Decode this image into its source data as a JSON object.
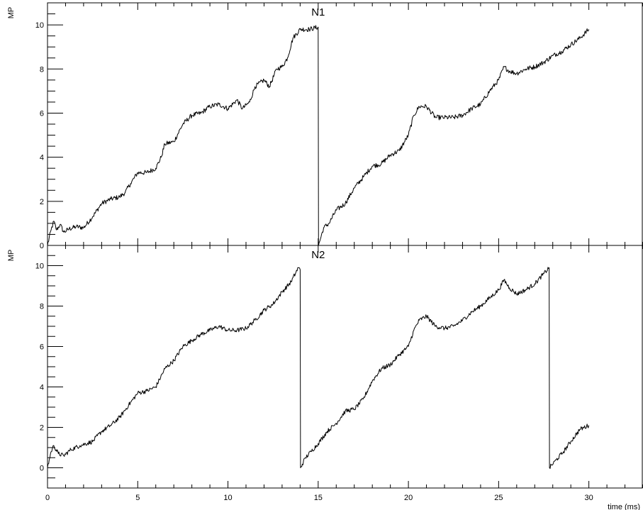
{
  "chart_data": [
    {
      "type": "line",
      "title": "N1",
      "xlabel": "",
      "ylabel": "MP",
      "xlim": [
        0,
        33
      ],
      "ylim": [
        0,
        11
      ],
      "x_ticks": [
        0,
        5,
        10,
        15,
        20,
        25,
        30
      ],
      "y_ticks": [
        0,
        2,
        4,
        6,
        8,
        10
      ],
      "y_tick_labels": [
        "0",
        "2",
        "4",
        "6",
        "8",
        "10"
      ],
      "grid": false,
      "legend": "none",
      "series": [
        {
          "color": "#000000",
          "points": [
            [
              0,
              0.0
            ],
            [
              0.2,
              0.7
            ],
            [
              0.35,
              1.1
            ],
            [
              0.5,
              0.7
            ],
            [
              0.7,
              0.95
            ],
            [
              0.9,
              0.6
            ],
            [
              1.2,
              0.75
            ],
            [
              1.6,
              0.85
            ],
            [
              2.0,
              0.8
            ],
            [
              2.5,
              1.3
            ],
            [
              3.0,
              1.9
            ],
            [
              3.5,
              2.1
            ],
            [
              4.0,
              2.2
            ],
            [
              4.3,
              2.4
            ],
            [
              4.6,
              2.8
            ],
            [
              5.0,
              3.3
            ],
            [
              5.5,
              3.3
            ],
            [
              6.0,
              3.5
            ],
            [
              6.3,
              4.0
            ],
            [
              6.5,
              4.6
            ],
            [
              7.0,
              4.7
            ],
            [
              7.5,
              5.5
            ],
            [
              8.0,
              5.9
            ],
            [
              8.5,
              6.0
            ],
            [
              9.0,
              6.3
            ],
            [
              9.5,
              6.4
            ],
            [
              10.0,
              6.2
            ],
            [
              10.5,
              6.6
            ],
            [
              10.8,
              6.2
            ],
            [
              11.2,
              6.5
            ],
            [
              11.5,
              7.2
            ],
            [
              12.0,
              7.5
            ],
            [
              12.3,
              7.2
            ],
            [
              12.7,
              8.0
            ],
            [
              13.0,
              8.1
            ],
            [
              13.3,
              8.5
            ],
            [
              13.6,
              9.4
            ],
            [
              14.0,
              9.8
            ],
            [
              14.5,
              9.8
            ],
            [
              15.0,
              9.9
            ],
            [
              15.02,
              0.0
            ],
            [
              15.3,
              0.8
            ],
            [
              15.6,
              1.0
            ],
            [
              16.0,
              1.6
            ],
            [
              16.5,
              1.9
            ],
            [
              17.0,
              2.6
            ],
            [
              17.5,
              3.1
            ],
            [
              18.0,
              3.6
            ],
            [
              18.5,
              3.7
            ],
            [
              19.0,
              4.1
            ],
            [
              19.5,
              4.3
            ],
            [
              20.0,
              5.0
            ],
            [
              20.3,
              5.9
            ],
            [
              20.6,
              6.3
            ],
            [
              21.0,
              6.3
            ],
            [
              21.5,
              5.8
            ],
            [
              22.0,
              5.8
            ],
            [
              22.5,
              5.8
            ],
            [
              23.0,
              5.9
            ],
            [
              23.5,
              6.2
            ],
            [
              24.0,
              6.4
            ],
            [
              24.5,
              7.0
            ],
            [
              25.0,
              7.5
            ],
            [
              25.3,
              8.1
            ],
            [
              25.6,
              7.9
            ],
            [
              26.0,
              7.8
            ],
            [
              26.5,
              8.0
            ],
            [
              27.0,
              8.1
            ],
            [
              27.5,
              8.3
            ],
            [
              28.0,
              8.6
            ],
            [
              28.5,
              8.8
            ],
            [
              29.0,
              9.1
            ],
            [
              29.5,
              9.4
            ],
            [
              30.0,
              9.8
            ]
          ]
        }
      ]
    },
    {
      "type": "line",
      "title": "N2",
      "xlabel": "time (ms)",
      "ylabel": "MP",
      "xlim": [
        0,
        33
      ],
      "ylim": [
        -1,
        11
      ],
      "x_ticks": [
        0,
        5,
        10,
        15,
        20,
        25,
        30
      ],
      "x_tick_labels": [
        "0",
        "5",
        "10",
        "15",
        "20",
        "25",
        "30"
      ],
      "y_ticks": [
        0,
        2,
        4,
        6,
        8,
        10
      ],
      "y_tick_labels": [
        "0",
        "2",
        "4",
        "6",
        "8",
        "10"
      ],
      "grid": false,
      "legend": "none",
      "series": [
        {
          "color": "#000000",
          "points": [
            [
              0,
              0.0
            ],
            [
              0.2,
              0.8
            ],
            [
              0.35,
              1.1
            ],
            [
              0.6,
              0.7
            ],
            [
              0.9,
              0.6
            ],
            [
              1.3,
              0.9
            ],
            [
              1.8,
              1.1
            ],
            [
              2.5,
              1.3
            ],
            [
              3.0,
              1.8
            ],
            [
              3.5,
              2.1
            ],
            [
              4.0,
              2.5
            ],
            [
              4.5,
              3.1
            ],
            [
              5.0,
              3.7
            ],
            [
              5.5,
              3.8
            ],
            [
              6.0,
              4.0
            ],
            [
              6.5,
              4.9
            ],
            [
              7.0,
              5.3
            ],
            [
              7.5,
              6.0
            ],
            [
              8.0,
              6.3
            ],
            [
              8.5,
              6.6
            ],
            [
              9.0,
              6.8
            ],
            [
              9.5,
              7.0
            ],
            [
              10.0,
              6.8
            ],
            [
              10.5,
              6.8
            ],
            [
              11.0,
              6.9
            ],
            [
              11.5,
              7.3
            ],
            [
              12.0,
              7.8
            ],
            [
              12.5,
              8.1
            ],
            [
              13.0,
              8.7
            ],
            [
              13.5,
              9.2
            ],
            [
              13.9,
              9.9
            ],
            [
              14.0,
              9.8
            ],
            [
              14.02,
              0.0
            ],
            [
              14.3,
              0.5
            ],
            [
              14.6,
              0.8
            ],
            [
              15.0,
              1.2
            ],
            [
              15.5,
              1.8
            ],
            [
              16.0,
              2.2
            ],
            [
              16.5,
              2.8
            ],
            [
              17.0,
              2.9
            ],
            [
              17.5,
              3.4
            ],
            [
              18.0,
              4.3
            ],
            [
              18.5,
              4.9
            ],
            [
              19.0,
              5.1
            ],
            [
              19.5,
              5.6
            ],
            [
              20.0,
              6.0
            ],
            [
              20.3,
              6.8
            ],
            [
              20.6,
              7.3
            ],
            [
              21.0,
              7.5
            ],
            [
              21.5,
              7.0
            ],
            [
              22.0,
              6.9
            ],
            [
              22.5,
              7.0
            ],
            [
              23.0,
              7.3
            ],
            [
              23.5,
              7.7
            ],
            [
              24.0,
              8.0
            ],
            [
              24.5,
              8.4
            ],
            [
              25.0,
              8.8
            ],
            [
              25.3,
              9.3
            ],
            [
              25.6,
              8.9
            ],
            [
              26.0,
              8.6
            ],
            [
              26.5,
              8.8
            ],
            [
              27.0,
              9.1
            ],
            [
              27.5,
              9.6
            ],
            [
              27.8,
              9.9
            ],
            [
              27.82,
              0.0
            ],
            [
              28.2,
              0.4
            ],
            [
              28.6,
              0.8
            ],
            [
              29.0,
              1.3
            ],
            [
              29.5,
              1.9
            ],
            [
              30.0,
              2.1
            ]
          ]
        }
      ]
    }
  ]
}
